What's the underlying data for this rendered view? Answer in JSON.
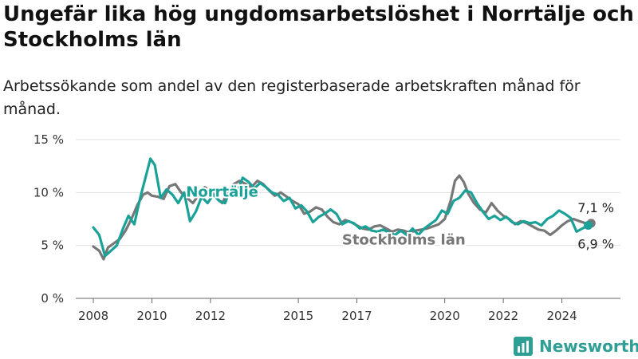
{
  "header": {
    "title": "Ungefär lika hög ungdomsarbetslöshet i Norrtälje och Stockholms län",
    "subtitle": "Arbetssökande som andel av den registerbaserade arbetskraften månad för månad."
  },
  "brand": {
    "name": "Newsworthy",
    "color": "#2f9e95",
    "icon": "bar-chart-icon"
  },
  "chart_data": {
    "type": "line",
    "ylim": [
      0,
      15
    ],
    "yticks": [
      {
        "value": 0,
        "label": "0 %"
      },
      {
        "value": 5,
        "label": "5 %"
      },
      {
        "value": 10,
        "label": "10 %"
      },
      {
        "value": 15,
        "label": "15 %"
      }
    ],
    "xlim": [
      2007.4,
      2026.0
    ],
    "xticks": [
      {
        "value": 2008,
        "label": "2008"
      },
      {
        "value": 2010,
        "label": "2010"
      },
      {
        "value": 2012,
        "label": "2012"
      },
      {
        "value": 2015,
        "label": "2015"
      },
      {
        "value": 2017,
        "label": "2017"
      },
      {
        "value": 2020,
        "label": "2020"
      },
      {
        "value": 2022,
        "label": "2022"
      },
      {
        "value": 2024,
        "label": "2024"
      }
    ],
    "grid": true,
    "series": [
      {
        "name": "Stockholms län",
        "color": "#777777",
        "label_pos": {
          "x": 2018.6,
          "y": 5.1
        },
        "end_label": "7,1 %",
        "x": [
          2008.0,
          2008.2,
          2008.35,
          2008.5,
          2008.7,
          2008.9,
          2009.1,
          2009.3,
          2009.5,
          2009.7,
          2009.85,
          2010.0,
          2010.2,
          2010.4,
          2010.6,
          2010.8,
          2011.0,
          2011.2,
          2011.4,
          2011.6,
          2011.8,
          2012.0,
          2012.2,
          2012.4,
          2012.6,
          2012.8,
          2013.0,
          2013.2,
          2013.4,
          2013.6,
          2013.8,
          2014.0,
          2014.2,
          2014.4,
          2014.6,
          2014.8,
          2015.0,
          2015.2,
          2015.4,
          2015.6,
          2015.8,
          2016.0,
          2016.2,
          2016.4,
          2016.6,
          2016.8,
          2017.0,
          2017.2,
          2017.4,
          2017.6,
          2017.8,
          2018.0,
          2018.2,
          2018.4,
          2018.6,
          2018.8,
          2019.0,
          2019.2,
          2019.4,
          2019.6,
          2019.8,
          2020.0,
          2020.2,
          2020.35,
          2020.5,
          2020.65,
          2020.8,
          2021.0,
          2021.2,
          2021.4,
          2021.6,
          2021.8,
          2022.0,
          2022.2,
          2022.4,
          2022.6,
          2022.8,
          2023.0,
          2023.2,
          2023.4,
          2023.6,
          2023.8,
          2024.0,
          2024.2,
          2024.4,
          2024.6,
          2024.8,
          2025.0
        ],
        "y": [
          4.9,
          4.5,
          3.7,
          4.8,
          5.2,
          5.6,
          6.4,
          7.5,
          8.8,
          9.8,
          10.0,
          9.7,
          9.6,
          9.4,
          10.6,
          10.8,
          10.0,
          9.5,
          9.0,
          9.8,
          10.5,
          10.2,
          9.5,
          9.0,
          10.0,
          10.8,
          11.1,
          10.8,
          10.5,
          11.1,
          10.8,
          10.2,
          9.7,
          10.0,
          9.6,
          9.2,
          8.9,
          8.0,
          8.2,
          8.6,
          8.4,
          7.7,
          7.2,
          7.0,
          7.4,
          7.2,
          6.9,
          6.6,
          6.5,
          6.8,
          6.9,
          6.6,
          6.3,
          6.5,
          6.4,
          6.2,
          6.4,
          6.5,
          6.6,
          6.8,
          7.0,
          7.5,
          9.2,
          11.1,
          11.6,
          11.0,
          9.9,
          9.0,
          8.4,
          8.1,
          9.0,
          8.3,
          7.8,
          7.5,
          7.0,
          7.3,
          7.1,
          6.8,
          6.5,
          6.4,
          6.0,
          6.4,
          6.9,
          7.3,
          7.5,
          7.3,
          7.1,
          7.1
        ]
      },
      {
        "name": "Norrtälje",
        "color": "#1aa198",
        "label_pos": {
          "x": 2012.4,
          "y": 9.6
        },
        "end_label": "6,9 %",
        "x": [
          2008.0,
          2008.2,
          2008.4,
          2008.6,
          2008.8,
          2009.0,
          2009.2,
          2009.4,
          2009.6,
          2009.8,
          2009.95,
          2010.1,
          2010.3,
          2010.5,
          2010.7,
          2010.9,
          2011.1,
          2011.3,
          2011.5,
          2011.7,
          2011.9,
          2012.1,
          2012.3,
          2012.5,
          2012.7,
          2012.9,
          2013.1,
          2013.3,
          2013.5,
          2013.7,
          2013.9,
          2014.1,
          2014.3,
          2014.5,
          2014.7,
          2014.9,
          2015.1,
          2015.3,
          2015.5,
          2015.7,
          2015.9,
          2016.1,
          2016.3,
          2016.5,
          2016.7,
          2016.9,
          2017.1,
          2017.3,
          2017.5,
          2017.7,
          2017.9,
          2018.1,
          2018.3,
          2018.5,
          2018.7,
          2018.9,
          2019.1,
          2019.3,
          2019.5,
          2019.7,
          2019.9,
          2020.1,
          2020.3,
          2020.5,
          2020.7,
          2020.9,
          2021.1,
          2021.3,
          2021.5,
          2021.7,
          2021.9,
          2022.1,
          2022.3,
          2022.5,
          2022.7,
          2022.9,
          2023.1,
          2023.3,
          2023.5,
          2023.7,
          2023.9,
          2024.1,
          2024.3,
          2024.5,
          2024.7,
          2024.9
        ],
        "y": [
          6.7,
          6.0,
          4.0,
          4.5,
          5.0,
          6.5,
          7.8,
          7.0,
          9.5,
          11.6,
          13.2,
          12.6,
          9.5,
          10.3,
          9.8,
          9.0,
          10.0,
          7.3,
          8.2,
          9.6,
          9.0,
          9.8,
          9.2,
          9.0,
          10.5,
          10.0,
          11.4,
          11.0,
          10.4,
          10.9,
          10.5,
          10.0,
          9.8,
          9.2,
          9.5,
          8.5,
          8.8,
          8.2,
          7.2,
          7.7,
          8.0,
          8.4,
          8.0,
          7.0,
          7.3,
          7.1,
          6.6,
          6.8,
          6.4,
          6.3,
          6.5,
          6.2,
          6.0,
          6.4,
          6.0,
          6.6,
          6.0,
          6.6,
          7.0,
          7.4,
          8.3,
          8.0,
          9.2,
          9.5,
          10.2,
          10.0,
          9.0,
          8.2,
          7.5,
          7.8,
          7.4,
          7.7,
          7.2,
          7.0,
          7.3,
          7.1,
          7.2,
          6.9,
          7.5,
          7.8,
          8.3,
          8.0,
          7.6,
          6.3,
          6.6,
          6.9
        ]
      }
    ]
  }
}
